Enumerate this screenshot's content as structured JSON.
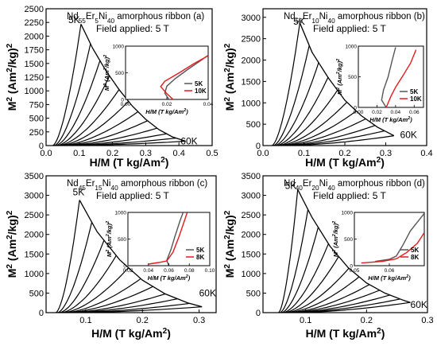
{
  "colors": {
    "curve": "#000000",
    "iso_low": "#555555",
    "iso_high": "#e8191c",
    "axis": "#000000"
  },
  "chart_data": [
    {
      "type": "line",
      "label": "(a)",
      "title": "Nd55Er5Ni40 amorphous ribbon",
      "title_parts": [
        [
          "Nd",
          ""
        ],
        [
          "55",
          "s"
        ],
        [
          "Er",
          ""
        ],
        [
          "5",
          "s"
        ],
        [
          "Ni",
          ""
        ],
        [
          "40",
          "s"
        ],
        [
          " amorphous ribbon",
          ""
        ]
      ],
      "subtitle": "Field applied: 5 T",
      "xlabel": "H/M (T kg/Am2)",
      "ylabel": "M2 (Am2/kg)2",
      "xlim": [
        0,
        0.5
      ],
      "ylim": [
        0,
        2500
      ],
      "xticks": [
        0.0,
        0.1,
        0.2,
        0.3,
        0.4,
        0.5
      ],
      "xticklabels": [
        "0.0",
        "0.1",
        "0.2",
        "0.3",
        "0.4",
        "0.5"
      ],
      "yticks": [
        0,
        250,
        500,
        750,
        1000,
        1250,
        1500,
        1750,
        2000,
        2250,
        2500
      ],
      "yticklabels": [
        "0",
        "250",
        "500",
        "750",
        "1000",
        "1250",
        "1500",
        "1750",
        "2000",
        "2250",
        "2500"
      ],
      "annotations": [
        {
          "text": "5K",
          "x": 0.067,
          "y": 2240
        },
        {
          "text": "60K",
          "x": 0.405,
          "y": 25
        }
      ],
      "envelope": [
        [
          0.105,
          2220
        ],
        [
          0.14,
          1780
        ],
        [
          0.18,
          1370
        ],
        [
          0.22,
          1020
        ],
        [
          0.26,
          720
        ],
        [
          0.3,
          480
        ],
        [
          0.34,
          290
        ],
        [
          0.38,
          160
        ],
        [
          0.42,
          80
        ]
      ],
      "isotherm_count": 12,
      "x_start": 0.005,
      "inset": {
        "xlim": [
          0.0,
          0.04
        ],
        "ylim": [
          0,
          1000
        ],
        "xticks": [
          0.0,
          0.02,
          0.04
        ],
        "xticklabels": [
          "0.00",
          "0.02",
          "0.04"
        ],
        "yticks": [
          0,
          500,
          1000
        ],
        "yticklabels": [
          "0",
          "500",
          "1000"
        ],
        "xlabel": "H/M (T kg/Am2)",
        "ylabel": "M2 (Am2/kg)2",
        "series": [
          {
            "name": "5K",
            "color": "#555555",
            "points": [
              [
                0.021,
                0
              ],
              [
                0.019,
                120
              ],
              [
                0.02,
                250
              ],
              [
                0.024,
                390
              ],
              [
                0.03,
                560
              ],
              [
                0.036,
                720
              ],
              [
                0.04,
                830
              ]
            ]
          },
          {
            "name": "10K",
            "color": "#e8191c",
            "points": [
              [
                0.023,
                0
              ],
              [
                0.02,
                110
              ],
              [
                0.017,
                240
              ],
              [
                0.019,
                340
              ],
              [
                0.026,
                500
              ],
              [
                0.033,
                670
              ],
              [
                0.04,
                820
              ]
            ]
          }
        ]
      }
    },
    {
      "type": "line",
      "label": "(b)",
      "title": "Nd50Er10Ni40 amorphous ribbon",
      "title_parts": [
        [
          "Nd",
          ""
        ],
        [
          "50",
          "s"
        ],
        [
          "Er",
          ""
        ],
        [
          "10",
          "s"
        ],
        [
          "Ni",
          ""
        ],
        [
          "40",
          "s"
        ],
        [
          " amorphous ribbon",
          ""
        ]
      ],
      "subtitle": "Field applied: 5 T",
      "xlabel": "H/M (T kg/Am2)",
      "ylabel": "M2 (Am2/kg)2",
      "xlim": [
        0,
        0.4
      ],
      "ylim": [
        0,
        3200
      ],
      "xticks": [
        0.0,
        0.1,
        0.2,
        0.3,
        0.4
      ],
      "xticklabels": [
        "0.0",
        "0.1",
        "0.2",
        "0.3",
        "0.4"
      ],
      "yticks": [
        0,
        500,
        1000,
        1500,
        2000,
        2500,
        3000
      ],
      "yticklabels": [
        "0",
        "500",
        "1000",
        "1500",
        "2000",
        "2500",
        "3000"
      ],
      "annotations": [
        {
          "text": "5K",
          "x": 0.074,
          "y": 2830
        },
        {
          "text": "60K",
          "x": 0.335,
          "y": 180
        }
      ],
      "envelope": [
        [
          0.09,
          2870
        ],
        [
          0.12,
          2180
        ],
        [
          0.16,
          1580
        ],
        [
          0.2,
          1060
        ],
        [
          0.24,
          700
        ],
        [
          0.28,
          430
        ],
        [
          0.32,
          230
        ]
      ],
      "isotherm_count": 11,
      "x_start": 0.01,
      "inset": {
        "xlim": [
          0.0,
          0.07
        ],
        "ylim": [
          0,
          1000
        ],
        "xticks": [
          0.0,
          0.02,
          0.04,
          0.06
        ],
        "xticklabels": [
          "0.00",
          "0.02",
          "0.04",
          "0.06"
        ],
        "yticks": [
          0,
          500,
          1000
        ],
        "yticklabels": [
          "0",
          "500",
          "1000"
        ],
        "xlabel": "H/M (T kg/Am2)",
        "ylabel": "M2 (Am2/kg)2",
        "series": [
          {
            "name": "5K",
            "color": "#555555",
            "points": [
              [
                0.03,
                0
              ],
              [
                0.025,
                120
              ],
              [
                0.027,
                280
              ],
              [
                0.032,
                500
              ],
              [
                0.036,
                750
              ],
              [
                0.04,
                980
              ]
            ]
          },
          {
            "name": "10K",
            "color": "#e8191c",
            "points": [
              [
                0.03,
                0
              ],
              [
                0.035,
                180
              ],
              [
                0.04,
                330
              ],
              [
                0.048,
                520
              ],
              [
                0.056,
                720
              ],
              [
                0.062,
                940
              ]
            ]
          }
        ]
      }
    },
    {
      "type": "line",
      "label": "(c)",
      "title": "Nd45Er15Ni40 amorphous ribbon",
      "title_parts": [
        [
          "Nd",
          ""
        ],
        [
          "45",
          "s"
        ],
        [
          "Er",
          ""
        ],
        [
          "15",
          "s"
        ],
        [
          "Ni",
          ""
        ],
        [
          "40",
          "s"
        ],
        [
          " amorphous ribbon",
          ""
        ]
      ],
      "subtitle": "Field applied: 5 T",
      "xlabel": "H/M (T kg/Am2)",
      "ylabel": "M2 (Am2/kg)2",
      "xlim": [
        0.03,
        0.33
      ],
      "ylim": [
        0,
        3500
      ],
      "xticks": [
        0.1,
        0.2,
        0.3
      ],
      "xticklabels": [
        "0.1",
        "0.2",
        "0.3"
      ],
      "yticks": [
        0,
        500,
        1000,
        1500,
        2000,
        2500,
        3000,
        3500
      ],
      "yticklabels": [
        "0",
        "500",
        "1000",
        "1500",
        "2000",
        "2500",
        "3000",
        "3500"
      ],
      "annotations": [
        {
          "text": "5K",
          "x": 0.077,
          "y": 3000
        },
        {
          "text": "60K",
          "x": 0.3,
          "y": 420
        }
      ],
      "envelope": [
        [
          0.089,
          2880
        ],
        [
          0.12,
          2070
        ],
        [
          0.16,
          1350
        ],
        [
          0.2,
          830
        ],
        [
          0.24,
          480
        ],
        [
          0.28,
          250
        ],
        [
          0.305,
          150
        ]
      ],
      "isotherm_count": 11,
      "x_start": 0.04,
      "inset": {
        "xlim": [
          0.02,
          0.1
        ],
        "ylim": [
          0,
          1000
        ],
        "xticks": [
          0.02,
          0.04,
          0.06,
          0.08,
          0.1
        ],
        "xticklabels": [
          "0.02",
          "0.04",
          "0.06",
          "0.08",
          "0.10"
        ],
        "yticks": [
          0,
          500,
          1000
        ],
        "yticklabels": [
          "0",
          "500",
          "1000"
        ],
        "xlabel": "H/M (T kg/Am2)",
        "ylabel": "M2 (Am2/kg)2",
        "series": [
          {
            "name": "5K",
            "color": "#555555",
            "points": [
              [
                0.06,
                0
              ],
              [
                0.058,
                100
              ],
              [
                0.062,
                300
              ],
              [
                0.066,
                550
              ],
              [
                0.071,
                850
              ],
              [
                0.074,
                1000
              ]
            ]
          },
          {
            "name": "8K",
            "color": "#e8191c",
            "points": [
              [
                0.04,
                30
              ],
              [
                0.05,
                60
              ],
              [
                0.058,
                90
              ],
              [
                0.064,
                250
              ],
              [
                0.07,
                550
              ],
              [
                0.078,
                1000
              ]
            ]
          }
        ]
      }
    },
    {
      "type": "line",
      "label": "(d)",
      "title": "Nd40Er20Ni40 amorphous ribbon",
      "title_parts": [
        [
          "Nd",
          ""
        ],
        [
          "40",
          "s"
        ],
        [
          "Er",
          ""
        ],
        [
          "20",
          "s"
        ],
        [
          "Ni",
          ""
        ],
        [
          "40",
          "s"
        ],
        [
          " amorphous ribbon",
          ""
        ]
      ],
      "subtitle": "Field applied: 5 T",
      "xlabel": "H/M (T kg/Am2)",
      "ylabel": "M2 (Am2/kg)2",
      "xlim": [
        0.03,
        0.3
      ],
      "ylim": [
        0,
        3500
      ],
      "xticks": [
        0.1,
        0.2,
        0.3
      ],
      "xticklabels": [
        "0.1",
        "0.2",
        "0.3"
      ],
      "yticks": [
        0,
        500,
        1000,
        1500,
        2000,
        2500,
        3000,
        3500
      ],
      "yticklabels": [
        "0",
        "500",
        "1000",
        "1500",
        "2000",
        "2500",
        "3000",
        "3500"
      ],
      "annotations": [
        {
          "text": "5K",
          "x": 0.066,
          "y": 3160
        },
        {
          "text": "60K",
          "x": 0.272,
          "y": 120
        }
      ],
      "envelope": [
        [
          0.087,
          3150
        ],
        [
          0.11,
          2450
        ],
        [
          0.14,
          1700
        ],
        [
          0.17,
          1150
        ],
        [
          0.2,
          760
        ],
        [
          0.23,
          500
        ],
        [
          0.26,
          320
        ],
        [
          0.272,
          260
        ]
      ],
      "isotherm_count": 12,
      "x_start": 0.05,
      "inset": {
        "xlim": [
          0.05,
          0.07
        ],
        "ylim": [
          0,
          1000
        ],
        "xticks": [
          0.05,
          0.06
        ],
        "xticklabels": [
          "0.05",
          "0.06"
        ],
        "yticks": [
          0,
          500,
          1000
        ],
        "yticklabels": [
          "0",
          "500",
          "1000"
        ],
        "xlabel": "H/M (T kg/Am2)",
        "ylabel": "M2 (Am2/kg)2",
        "series": [
          {
            "name": "5K",
            "color": "#555555",
            "points": [
              [
                0.056,
                80
              ],
              [
                0.06,
                120
              ],
              [
                0.062,
                180
              ],
              [
                0.064,
                400
              ],
              [
                0.066,
                650
              ],
              [
                0.07,
                980
              ]
            ]
          },
          {
            "name": "8K",
            "color": "#e8191c",
            "points": [
              [
                0.052,
                50
              ],
              [
                0.058,
                80
              ],
              [
                0.062,
                130
              ],
              [
                0.065,
                250
              ],
              [
                0.068,
                420
              ],
              [
                0.07,
                620
              ]
            ]
          }
        ]
      }
    }
  ]
}
